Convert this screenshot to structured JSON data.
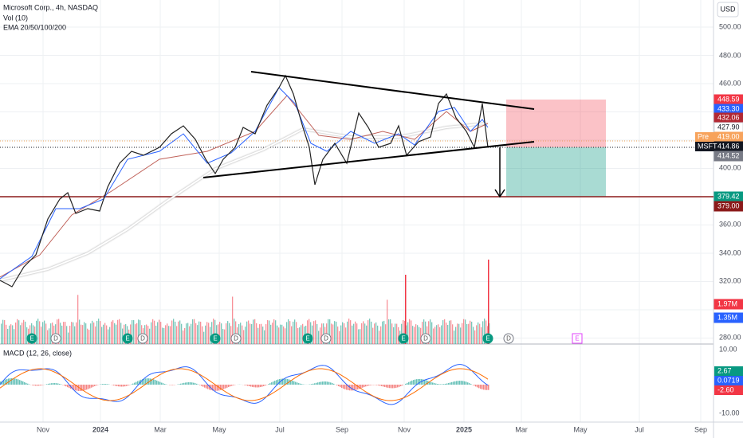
{
  "header": {
    "symbol": "Microsoft Corp., 4h, NASDAQ",
    "indicators": [
      "Vol (10)",
      "EMA 20/50/100/200"
    ]
  },
  "currency": "USD",
  "price_axis": [
    "500.00",
    "480.00",
    "460.00",
    "400.00",
    "360.00",
    "340.00",
    "320.00",
    "280.00"
  ],
  "price_tags": [
    {
      "label": "448.59"
    },
    {
      "label": "433.30"
    },
    {
      "label": "432.06"
    },
    {
      "label": "427.90"
    },
    {
      "prefix": "Pre",
      "label": "419.00"
    },
    {
      "prefix": "MSFT",
      "label": "414.86"
    },
    {
      "label": "414.52"
    },
    {
      "label": "379.42"
    },
    {
      "label": "379.00"
    },
    {
      "label": "1.97M"
    },
    {
      "label": "1.35M"
    }
  ],
  "time_axis": [
    "Nov",
    "2024",
    "Mar",
    "May",
    "Jul",
    "Sep",
    "Nov",
    "2025",
    "Mar",
    "May",
    "Jul",
    "Sep"
  ],
  "events": [
    "E",
    "D",
    "E",
    "D",
    "E",
    "D",
    "E",
    "D",
    "E",
    "D",
    "E",
    "D",
    "E"
  ],
  "macd": {
    "title": "MACD (12, 26, close)",
    "axis": [
      "10.00",
      "-10.00"
    ],
    "tags": [
      "2.67",
      "0.0719",
      "-2.60"
    ]
  }
}
